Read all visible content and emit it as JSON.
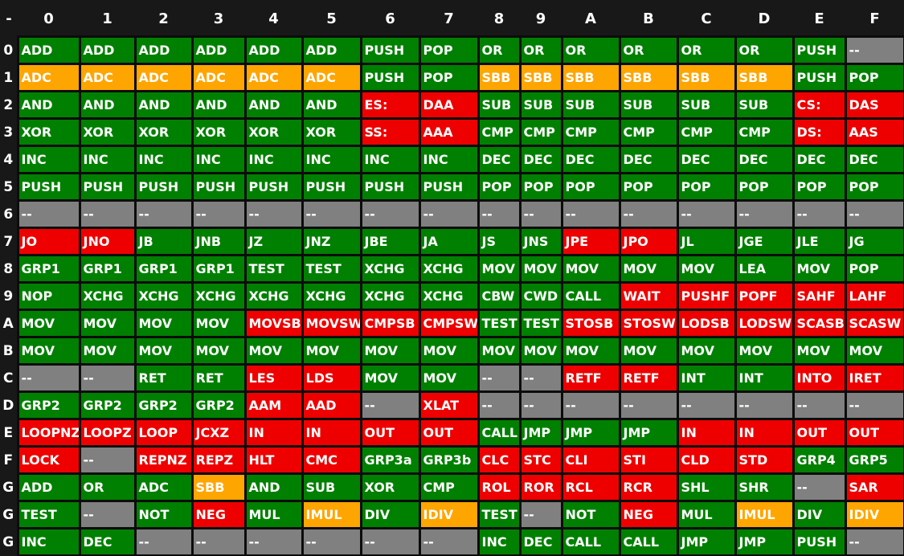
{
  "palette": {
    "green": "#008000",
    "orange": "#FFA500",
    "red": "#EE0000",
    "gray": "#808080",
    "background": "#181818",
    "grid": "#0C0C0C",
    "text": "#FFFFFF"
  },
  "header": {
    "corner": "-",
    "columns": [
      "0",
      "1",
      "2",
      "3",
      "4",
      "5",
      "6",
      "7",
      "8",
      "9",
      "A",
      "B",
      "C",
      "D",
      "E",
      "F"
    ]
  },
  "rows": [
    {
      "label": "0",
      "cells": [
        [
          "ADD",
          "green"
        ],
        [
          "ADD",
          "green"
        ],
        [
          "ADD",
          "green"
        ],
        [
          "ADD",
          "green"
        ],
        [
          "ADD",
          "green"
        ],
        [
          "ADD",
          "green"
        ],
        [
          "PUSH",
          "green"
        ],
        [
          "POP",
          "green"
        ],
        [
          "OR",
          "green"
        ],
        [
          "OR",
          "green"
        ],
        [
          "OR",
          "green"
        ],
        [
          "OR",
          "green"
        ],
        [
          "OR",
          "green"
        ],
        [
          "OR",
          "green"
        ],
        [
          "PUSH",
          "green"
        ],
        [
          "--",
          "gray"
        ]
      ]
    },
    {
      "label": "1",
      "cells": [
        [
          "ADC",
          "orange"
        ],
        [
          "ADC",
          "orange"
        ],
        [
          "ADC",
          "orange"
        ],
        [
          "ADC",
          "orange"
        ],
        [
          "ADC",
          "orange"
        ],
        [
          "ADC",
          "orange"
        ],
        [
          "PUSH",
          "green"
        ],
        [
          "POP",
          "green"
        ],
        [
          "SBB",
          "orange"
        ],
        [
          "SBB",
          "orange"
        ],
        [
          "SBB",
          "orange"
        ],
        [
          "SBB",
          "orange"
        ],
        [
          "SBB",
          "orange"
        ],
        [
          "SBB",
          "orange"
        ],
        [
          "PUSH",
          "green"
        ],
        [
          "POP",
          "green"
        ]
      ]
    },
    {
      "label": "2",
      "cells": [
        [
          "AND",
          "green"
        ],
        [
          "AND",
          "green"
        ],
        [
          "AND",
          "green"
        ],
        [
          "AND",
          "green"
        ],
        [
          "AND",
          "green"
        ],
        [
          "AND",
          "green"
        ],
        [
          "ES:",
          "red"
        ],
        [
          "DAA",
          "red"
        ],
        [
          "SUB",
          "green"
        ],
        [
          "SUB",
          "green"
        ],
        [
          "SUB",
          "green"
        ],
        [
          "SUB",
          "green"
        ],
        [
          "SUB",
          "green"
        ],
        [
          "SUB",
          "green"
        ],
        [
          "CS:",
          "red"
        ],
        [
          "DAS",
          "red"
        ]
      ]
    },
    {
      "label": "3",
      "cells": [
        [
          "XOR",
          "green"
        ],
        [
          "XOR",
          "green"
        ],
        [
          "XOR",
          "green"
        ],
        [
          "XOR",
          "green"
        ],
        [
          "XOR",
          "green"
        ],
        [
          "XOR",
          "green"
        ],
        [
          "SS:",
          "red"
        ],
        [
          "AAA",
          "red"
        ],
        [
          "CMP",
          "green"
        ],
        [
          "CMP",
          "green"
        ],
        [
          "CMP",
          "green"
        ],
        [
          "CMP",
          "green"
        ],
        [
          "CMP",
          "green"
        ],
        [
          "CMP",
          "green"
        ],
        [
          "DS:",
          "red"
        ],
        [
          "AAS",
          "red"
        ]
      ]
    },
    {
      "label": "4",
      "cells": [
        [
          "INC",
          "green"
        ],
        [
          "INC",
          "green"
        ],
        [
          "INC",
          "green"
        ],
        [
          "INC",
          "green"
        ],
        [
          "INC",
          "green"
        ],
        [
          "INC",
          "green"
        ],
        [
          "INC",
          "green"
        ],
        [
          "INC",
          "green"
        ],
        [
          "DEC",
          "green"
        ],
        [
          "DEC",
          "green"
        ],
        [
          "DEC",
          "green"
        ],
        [
          "DEC",
          "green"
        ],
        [
          "DEC",
          "green"
        ],
        [
          "DEC",
          "green"
        ],
        [
          "DEC",
          "green"
        ],
        [
          "DEC",
          "green"
        ]
      ]
    },
    {
      "label": "5",
      "cells": [
        [
          "PUSH",
          "green"
        ],
        [
          "PUSH",
          "green"
        ],
        [
          "PUSH",
          "green"
        ],
        [
          "PUSH",
          "green"
        ],
        [
          "PUSH",
          "green"
        ],
        [
          "PUSH",
          "green"
        ],
        [
          "PUSH",
          "green"
        ],
        [
          "PUSH",
          "green"
        ],
        [
          "POP",
          "green"
        ],
        [
          "POP",
          "green"
        ],
        [
          "POP",
          "green"
        ],
        [
          "POP",
          "green"
        ],
        [
          "POP",
          "green"
        ],
        [
          "POP",
          "green"
        ],
        [
          "POP",
          "green"
        ],
        [
          "POP",
          "green"
        ]
      ]
    },
    {
      "label": "6",
      "cells": [
        [
          "--",
          "gray"
        ],
        [
          "--",
          "gray"
        ],
        [
          "--",
          "gray"
        ],
        [
          "--",
          "gray"
        ],
        [
          "--",
          "gray"
        ],
        [
          "--",
          "gray"
        ],
        [
          "--",
          "gray"
        ],
        [
          "--",
          "gray"
        ],
        [
          "--",
          "gray"
        ],
        [
          "--",
          "gray"
        ],
        [
          "--",
          "gray"
        ],
        [
          "--",
          "gray"
        ],
        [
          "--",
          "gray"
        ],
        [
          "--",
          "gray"
        ],
        [
          "--",
          "gray"
        ],
        [
          "--",
          "gray"
        ]
      ]
    },
    {
      "label": "7",
      "cells": [
        [
          "JO",
          "red"
        ],
        [
          "JNO",
          "red"
        ],
        [
          "JB",
          "green"
        ],
        [
          "JNB",
          "green"
        ],
        [
          "JZ",
          "green"
        ],
        [
          "JNZ",
          "green"
        ],
        [
          "JBE",
          "green"
        ],
        [
          "JA",
          "green"
        ],
        [
          "JS",
          "green"
        ],
        [
          "JNS",
          "green"
        ],
        [
          "JPE",
          "red"
        ],
        [
          "JPO",
          "red"
        ],
        [
          "JL",
          "green"
        ],
        [
          "JGE",
          "green"
        ],
        [
          "JLE",
          "green"
        ],
        [
          "JG",
          "green"
        ]
      ]
    },
    {
      "label": "8",
      "cells": [
        [
          "GRP1",
          "green"
        ],
        [
          "GRP1",
          "green"
        ],
        [
          "GRP1",
          "green"
        ],
        [
          "GRP1",
          "green"
        ],
        [
          "TEST",
          "green"
        ],
        [
          "TEST",
          "green"
        ],
        [
          "XCHG",
          "green"
        ],
        [
          "XCHG",
          "green"
        ],
        [
          "MOV",
          "green"
        ],
        [
          "MOV",
          "green"
        ],
        [
          "MOV",
          "green"
        ],
        [
          "MOV",
          "green"
        ],
        [
          "MOV",
          "green"
        ],
        [
          "LEA",
          "green"
        ],
        [
          "MOV",
          "green"
        ],
        [
          "POP",
          "green"
        ]
      ]
    },
    {
      "label": "9",
      "cells": [
        [
          "NOP",
          "green"
        ],
        [
          "XCHG",
          "green"
        ],
        [
          "XCHG",
          "green"
        ],
        [
          "XCHG",
          "green"
        ],
        [
          "XCHG",
          "green"
        ],
        [
          "XCHG",
          "green"
        ],
        [
          "XCHG",
          "green"
        ],
        [
          "XCHG",
          "green"
        ],
        [
          "CBW",
          "green"
        ],
        [
          "CWD",
          "green"
        ],
        [
          "CALL",
          "green"
        ],
        [
          "WAIT",
          "red"
        ],
        [
          "PUSHF",
          "red"
        ],
        [
          "POPF",
          "red"
        ],
        [
          "SAHF",
          "red"
        ],
        [
          "LAHF",
          "red"
        ]
      ]
    },
    {
      "label": "A",
      "cells": [
        [
          "MOV",
          "green"
        ],
        [
          "MOV",
          "green"
        ],
        [
          "MOV",
          "green"
        ],
        [
          "MOV",
          "green"
        ],
        [
          "MOVSB",
          "red"
        ],
        [
          "MOVSW",
          "red"
        ],
        [
          "CMPSB",
          "red"
        ],
        [
          "CMPSW",
          "red"
        ],
        [
          "TEST",
          "green"
        ],
        [
          "TEST",
          "green"
        ],
        [
          "STOSB",
          "red"
        ],
        [
          "STOSW",
          "red"
        ],
        [
          "LODSB",
          "red"
        ],
        [
          "LODSW",
          "red"
        ],
        [
          "SCASB",
          "red"
        ],
        [
          "SCASW",
          "red"
        ]
      ]
    },
    {
      "label": "B",
      "cells": [
        [
          "MOV",
          "green"
        ],
        [
          "MOV",
          "green"
        ],
        [
          "MOV",
          "green"
        ],
        [
          "MOV",
          "green"
        ],
        [
          "MOV",
          "green"
        ],
        [
          "MOV",
          "green"
        ],
        [
          "MOV",
          "green"
        ],
        [
          "MOV",
          "green"
        ],
        [
          "MOV",
          "green"
        ],
        [
          "MOV",
          "green"
        ],
        [
          "MOV",
          "green"
        ],
        [
          "MOV",
          "green"
        ],
        [
          "MOV",
          "green"
        ],
        [
          "MOV",
          "green"
        ],
        [
          "MOV",
          "green"
        ],
        [
          "MOV",
          "green"
        ]
      ]
    },
    {
      "label": "C",
      "cells": [
        [
          "--",
          "gray"
        ],
        [
          "--",
          "gray"
        ],
        [
          "RET",
          "green"
        ],
        [
          "RET",
          "green"
        ],
        [
          "LES",
          "red"
        ],
        [
          "LDS",
          "red"
        ],
        [
          "MOV",
          "green"
        ],
        [
          "MOV",
          "green"
        ],
        [
          "--",
          "gray"
        ],
        [
          "--",
          "gray"
        ],
        [
          "RETF",
          "red"
        ],
        [
          "RETF",
          "red"
        ],
        [
          "INT",
          "green"
        ],
        [
          "INT",
          "green"
        ],
        [
          "INTO",
          "red"
        ],
        [
          "IRET",
          "red"
        ]
      ]
    },
    {
      "label": "D",
      "cells": [
        [
          "GRP2",
          "green"
        ],
        [
          "GRP2",
          "green"
        ],
        [
          "GRP2",
          "green"
        ],
        [
          "GRP2",
          "green"
        ],
        [
          "AAM",
          "red"
        ],
        [
          "AAD",
          "red"
        ],
        [
          "--",
          "gray"
        ],
        [
          "XLAT",
          "red"
        ],
        [
          "--",
          "gray"
        ],
        [
          "--",
          "gray"
        ],
        [
          "--",
          "gray"
        ],
        [
          "--",
          "gray"
        ],
        [
          "--",
          "gray"
        ],
        [
          "--",
          "gray"
        ],
        [
          "--",
          "gray"
        ],
        [
          "--",
          "gray"
        ]
      ]
    },
    {
      "label": "E",
      "cells": [
        [
          "LOOPNZ",
          "red"
        ],
        [
          "LOOPZ",
          "red"
        ],
        [
          "LOOP",
          "red"
        ],
        [
          "JCXZ",
          "red"
        ],
        [
          "IN",
          "red"
        ],
        [
          "IN",
          "red"
        ],
        [
          "OUT",
          "red"
        ],
        [
          "OUT",
          "red"
        ],
        [
          "CALL",
          "green"
        ],
        [
          "JMP",
          "green"
        ],
        [
          "JMP",
          "green"
        ],
        [
          "JMP",
          "green"
        ],
        [
          "IN",
          "red"
        ],
        [
          "IN",
          "red"
        ],
        [
          "OUT",
          "red"
        ],
        [
          "OUT",
          "red"
        ]
      ]
    },
    {
      "label": "F",
      "cells": [
        [
          "LOCK",
          "red"
        ],
        [
          "--",
          "gray"
        ],
        [
          "REPNZ",
          "red"
        ],
        [
          "REPZ",
          "red"
        ],
        [
          "HLT",
          "red"
        ],
        [
          "CMC",
          "red"
        ],
        [
          "GRP3a",
          "green"
        ],
        [
          "GRP3b",
          "green"
        ],
        [
          "CLC",
          "red"
        ],
        [
          "STC",
          "red"
        ],
        [
          "CLI",
          "red"
        ],
        [
          "STI",
          "red"
        ],
        [
          "CLD",
          "red"
        ],
        [
          "STD",
          "red"
        ],
        [
          "GRP4",
          "green"
        ],
        [
          "GRP5",
          "green"
        ]
      ]
    },
    {
      "label": "G",
      "cells": [
        [
          "ADD",
          "green"
        ],
        [
          "OR",
          "green"
        ],
        [
          "ADC",
          "green"
        ],
        [
          "SBB",
          "orange"
        ],
        [
          "AND",
          "green"
        ],
        [
          "SUB",
          "green"
        ],
        [
          "XOR",
          "green"
        ],
        [
          "CMP",
          "green"
        ],
        [
          "ROL",
          "red"
        ],
        [
          "ROR",
          "red"
        ],
        [
          "RCL",
          "red"
        ],
        [
          "RCR",
          "red"
        ],
        [
          "SHL",
          "green"
        ],
        [
          "SHR",
          "green"
        ],
        [
          "--",
          "gray"
        ],
        [
          "SAR",
          "red"
        ]
      ]
    },
    {
      "label": "G",
      "cells": [
        [
          "TEST",
          "green"
        ],
        [
          "--",
          "gray"
        ],
        [
          "NOT",
          "green"
        ],
        [
          "NEG",
          "red"
        ],
        [
          "MUL",
          "green"
        ],
        [
          "IMUL",
          "orange"
        ],
        [
          "DIV",
          "green"
        ],
        [
          "IDIV",
          "orange"
        ],
        [
          "TEST",
          "green"
        ],
        [
          "--",
          "gray"
        ],
        [
          "NOT",
          "green"
        ],
        [
          "NEG",
          "red"
        ],
        [
          "MUL",
          "green"
        ],
        [
          "IMUL",
          "orange"
        ],
        [
          "DIV",
          "green"
        ],
        [
          "IDIV",
          "orange"
        ]
      ]
    },
    {
      "label": "G",
      "cells": [
        [
          "INC",
          "green"
        ],
        [
          "DEC",
          "green"
        ],
        [
          "--",
          "gray"
        ],
        [
          "--",
          "gray"
        ],
        [
          "--",
          "gray"
        ],
        [
          "--",
          "gray"
        ],
        [
          "--",
          "gray"
        ],
        [
          "--",
          "gray"
        ],
        [
          "INC",
          "green"
        ],
        [
          "DEC",
          "green"
        ],
        [
          "CALL",
          "green"
        ],
        [
          "CALL",
          "green"
        ],
        [
          "JMP",
          "green"
        ],
        [
          "JMP",
          "green"
        ],
        [
          "PUSH",
          "green"
        ],
        [
          "--",
          "gray"
        ]
      ]
    }
  ]
}
